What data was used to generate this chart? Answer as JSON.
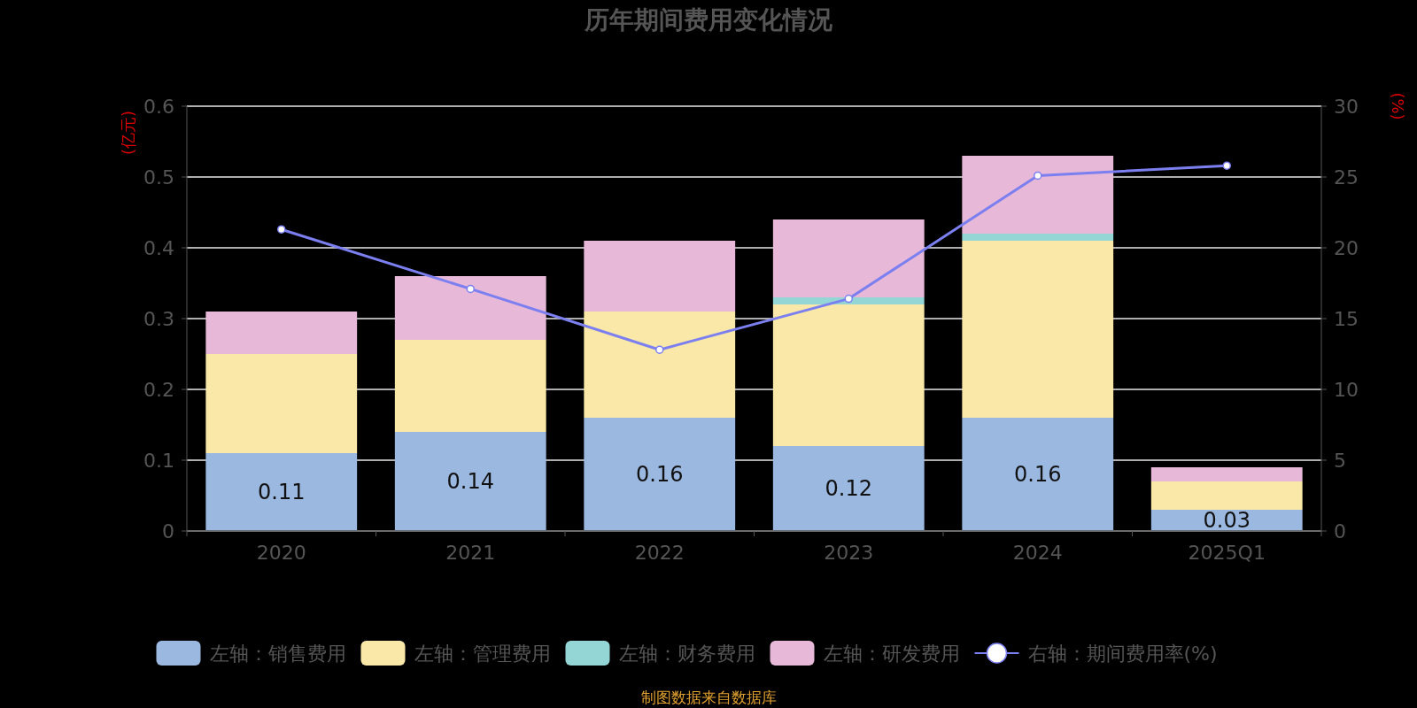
{
  "chart_data": {
    "type": "bar",
    "title": "历年期间费用变化情况",
    "ylabel": "(亿元)",
    "y2label": "(%)",
    "stacked": true,
    "categories": [
      "2020",
      "2021",
      "2022",
      "2023",
      "2024",
      "2025Q1"
    ],
    "series": [
      {
        "name": "左轴：销售费用",
        "color": "#9bb8e0",
        "values": [
          0.11,
          0.14,
          0.16,
          0.12,
          0.16,
          0.03
        ],
        "value_labels": [
          "0.11",
          "0.14",
          "0.16",
          "0.12",
          "0.16",
          "0.03"
        ]
      },
      {
        "name": "左轴：管理费用",
        "color": "#f9e8a8",
        "values": [
          0.14,
          0.13,
          0.15,
          0.2,
          0.25,
          0.04
        ]
      },
      {
        "name": "左轴：财务费用",
        "color": "#94d5d6",
        "values": [
          0,
          0,
          0,
          0.01,
          0.01,
          0
        ]
      },
      {
        "name": "左轴：研发费用",
        "color": "#e8b8d8",
        "values": [
          0.06,
          0.09,
          0.1,
          0.11,
          0.11,
          0.02
        ]
      },
      {
        "name": "右轴：期间费用率(%)",
        "type": "line",
        "axis": "y2",
        "color": "#7b7ff0",
        "values": [
          21.3,
          17.1,
          12.8,
          16.4,
          25.1,
          25.8
        ]
      }
    ],
    "ylim": [
      0,
      0.6
    ],
    "yticks": [
      0,
      0.1,
      0.2,
      0.3,
      0.4,
      0.5,
      0.6
    ],
    "y2lim": [
      0,
      30
    ],
    "y2ticks": [
      0,
      5,
      10,
      15,
      20,
      25,
      30
    ],
    "grid": "y",
    "legend": "bottom",
    "marker": "circle",
    "line_style": "solid",
    "annotations": [
      "制图数据来自数据库"
    ]
  }
}
